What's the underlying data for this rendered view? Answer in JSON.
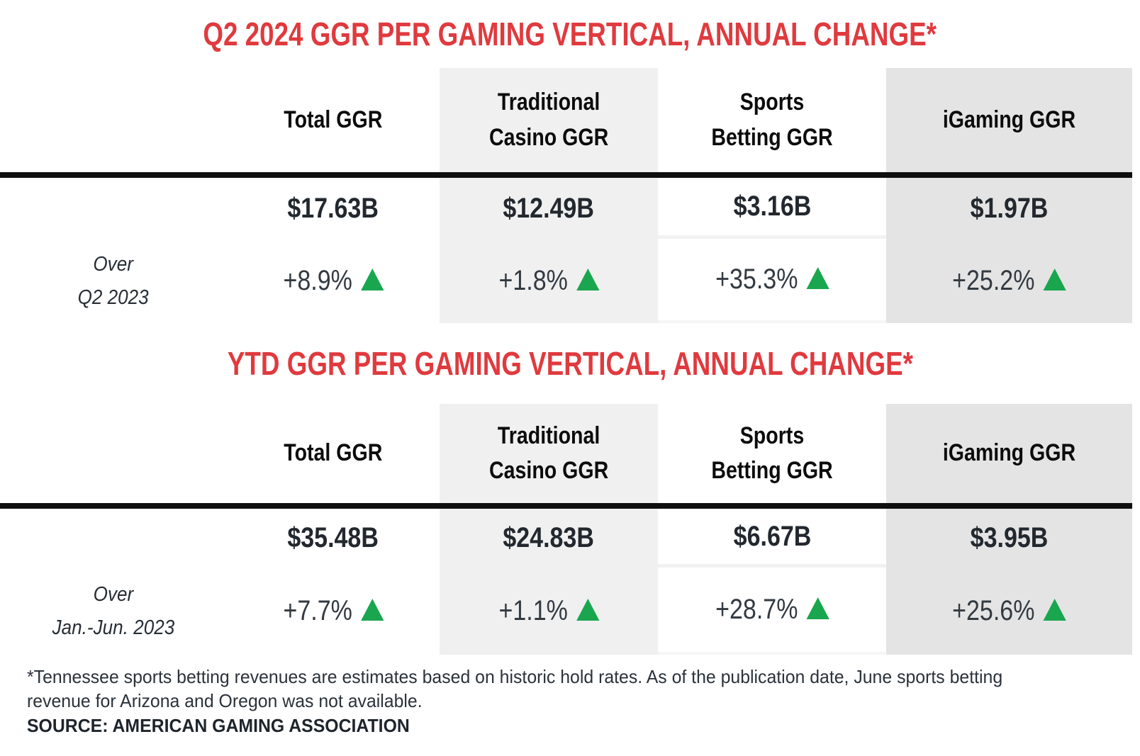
{
  "chart_data": [
    {
      "type": "table",
      "title": "Q2 2024 GGR PER GAMING VERTICAL, ANNUAL CHANGE*",
      "columns": [
        [
          "Total GGR"
        ],
        [
          "Traditional",
          "Casino GGR"
        ],
        [
          "Sports",
          "Betting GGR"
        ],
        [
          "iGaming GGR"
        ]
      ],
      "row_label_lines": [
        "Over",
        "Q2 2023"
      ],
      "values": [
        "$17.63B",
        "$12.49B",
        "$3.16B",
        "$1.97B"
      ],
      "changes": [
        "+8.9%",
        "+1.8%",
        "+35.3%",
        "+25.2%"
      ],
      "change_direction": "up"
    },
    {
      "type": "table",
      "title": "YTD GGR PER GAMING VERTICAL, ANNUAL CHANGE*",
      "columns": [
        [
          "Total GGR"
        ],
        [
          "Traditional",
          "Casino GGR"
        ],
        [
          "Sports",
          "Betting GGR"
        ],
        [
          "iGaming GGR"
        ]
      ],
      "row_label_lines": [
        "Over",
        "Jan.-Jun. 2023"
      ],
      "values": [
        "$35.48B",
        "$24.83B",
        "$6.67B",
        "$3.95B"
      ],
      "changes": [
        "+7.7%",
        "+1.1%",
        "+28.7%",
        "+25.6%"
      ],
      "change_direction": "up"
    }
  ],
  "footnote": {
    "lines": [
      "*Tennessee sports betting revenues are estimates based on historic hold rates. As of the publication date, June sports betting",
      "revenue for Arizona and Oregon was not available."
    ],
    "source": "SOURCE: AMERICAN GAMING ASSOCIATION"
  },
  "styles": {
    "title_red": "#e03a3e",
    "positive_green": "#1aa64f",
    "col_bg_traditional_casino": "#f0f0f0",
    "col_bg_igaming": "#e4e4e4",
    "header_rule_black": "#0f0f0f"
  }
}
